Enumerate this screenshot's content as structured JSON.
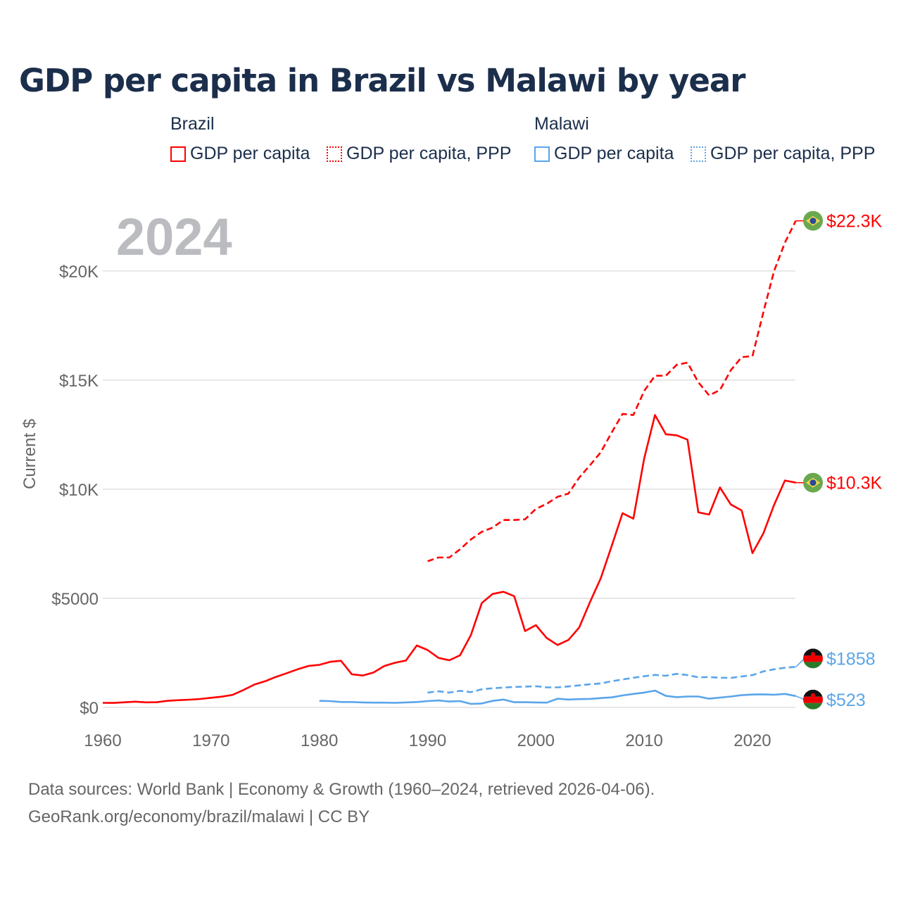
{
  "title": "GDP per capita in Brazil vs Malawi by year",
  "legend": {
    "groups": [
      {
        "name": "Brazil",
        "items": [
          "GDP per capita",
          "GDP per capita, PPP"
        ],
        "color": "#ff0000"
      },
      {
        "name": "Malawi",
        "items": [
          "GDP per capita",
          "GDP per capita, PPP"
        ],
        "color": "#5aa5ea"
      }
    ]
  },
  "footer": {
    "line1": "Data sources: World Bank | Economy & Growth (1960–2024, retrieved 2026-04-06).",
    "line2": "GeoRank.org/economy/brazil/malawi | CC BY"
  },
  "chart_data": {
    "type": "line",
    "title": "GDP per capita in Brazil vs Malawi by year",
    "year_watermark": "2024",
    "xlabel": "",
    "ylabel": "Current $",
    "xlim": [
      1960,
      2024
    ],
    "ylim": [
      0,
      23000
    ],
    "x_ticks": [
      1960,
      1970,
      1980,
      1990,
      2000,
      2010,
      2020
    ],
    "x_tick_labels": [
      "1960",
      "1970",
      "1980",
      "1990",
      "2000",
      "2010",
      "2020"
    ],
    "y_ticks": [
      0,
      5000,
      10000,
      15000,
      20000
    ],
    "y_tick_labels": [
      "$0",
      "$5000",
      "$10K",
      "$15K",
      "$20K"
    ],
    "grid": true,
    "series": [
      {
        "name": "Brazil GDP per capita",
        "color": "#ff0000",
        "dash": "solid",
        "start": 1960,
        "end_label": "$10.3K",
        "values": [
          210,
          208,
          235,
          266,
          233,
          240,
          303,
          332,
          354,
          386,
          441,
          495,
          577,
          800,
          1050,
          1200,
          1400,
          1570,
          1750,
          1900,
          1950,
          2090,
          2140,
          1520,
          1460,
          1600,
          1900,
          2050,
          2150,
          2840,
          2630,
          2270,
          2160,
          2390,
          3320,
          4780,
          5200,
          5300,
          5100,
          3500,
          3770,
          3180,
          2860,
          3090,
          3660,
          4830,
          5930,
          7400,
          8900,
          8650,
          11400,
          13400,
          12520,
          12470,
          12270,
          8940,
          8840,
          10080,
          9300,
          9030,
          7070,
          7970,
          9280,
          10400,
          10300
        ]
      },
      {
        "name": "Brazil GDP per capita, PPP",
        "color": "#ff0000",
        "dash": "dashed",
        "start": 1990,
        "end_label": "$22.3K",
        "values": [
          6700,
          6870,
          6870,
          7250,
          7700,
          8050,
          8240,
          8590,
          8590,
          8620,
          9100,
          9330,
          9650,
          9800,
          10530,
          11100,
          11700,
          12600,
          13450,
          13400,
          14500,
          15200,
          15200,
          15700,
          15800,
          14900,
          14300,
          14550,
          15450,
          16050,
          16100,
          18100,
          20000,
          21300,
          22300
        ]
      },
      {
        "name": "Malawi GDP per capita",
        "color": "#5aa5ea",
        "dash": "solid",
        "start": 1980,
        "end_label": "$523",
        "values": [
          300,
          290,
          250,
          250,
          230,
          220,
          220,
          210,
          230,
          250,
          290,
          320,
          270,
          290,
          160,
          180,
          300,
          360,
          240,
          240,
          230,
          220,
          400,
          360,
          380,
          390,
          430,
          460,
          550,
          620,
          680,
          770,
          530,
          470,
          500,
          500,
          400,
          450,
          500,
          560,
          590,
          600,
          580,
          620,
          523
        ]
      },
      {
        "name": "Malawi GDP per capita, PPP",
        "color": "#5aa5ea",
        "dash": "dashed",
        "start": 1990,
        "end_label": "$1858",
        "values": [
          680,
          740,
          680,
          760,
          700,
          830,
          880,
          910,
          940,
          950,
          970,
          920,
          920,
          960,
          1010,
          1060,
          1100,
          1200,
          1280,
          1360,
          1430,
          1490,
          1450,
          1540,
          1480,
          1380,
          1390,
          1360,
          1350,
          1420,
          1480,
          1650,
          1750,
          1820,
          1858
        ]
      }
    ]
  }
}
